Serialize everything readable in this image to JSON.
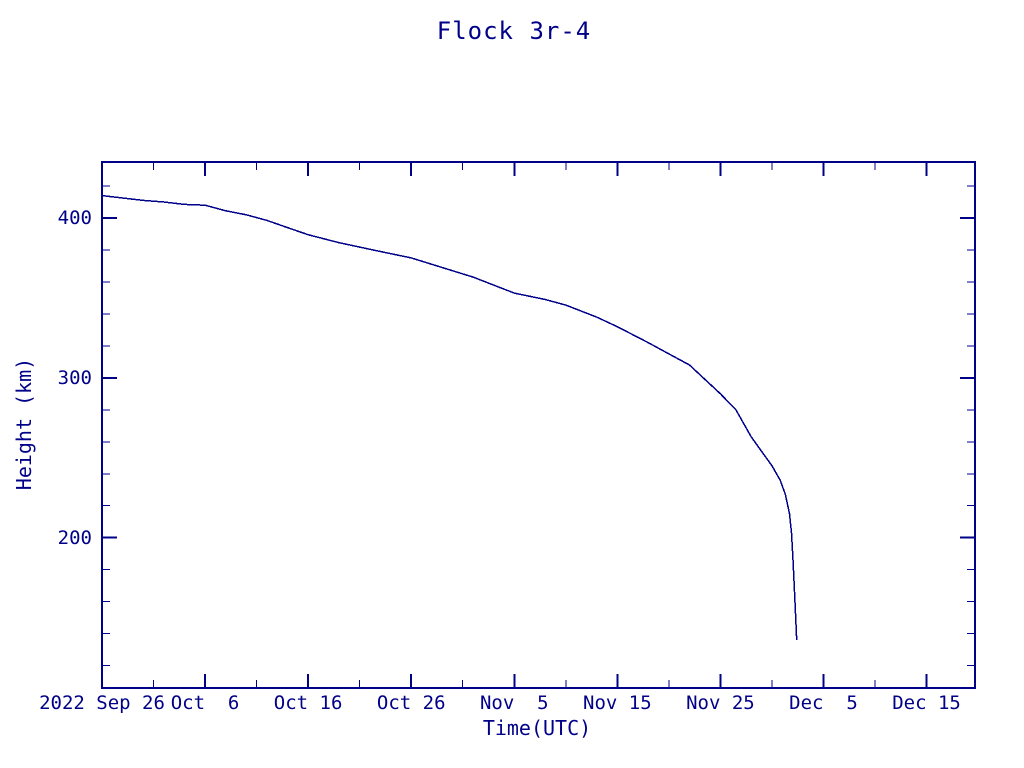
{
  "title": "Flock 3r-4",
  "colors": {
    "ink": "#000088",
    "background": "#ffffff",
    "line": "#000088"
  },
  "chart_data": {
    "type": "line",
    "title": "Flock 3r-4",
    "xlabel": "Time(UTC)",
    "ylabel": "Height (km)",
    "x_axis_year": "2022",
    "x_tick_labels": [
      "2022 Sep 26",
      "Oct  6",
      "Oct 16",
      "Oct 26",
      "Nov  5",
      "Nov 15",
      "Nov 25",
      "Dec  5",
      "Dec 15"
    ],
    "x_tick_days": [
      0,
      10,
      20,
      30,
      40,
      50,
      60,
      70,
      80
    ],
    "x_minor_tick_days": [
      5,
      15,
      25,
      35,
      45,
      55,
      65,
      75
    ],
    "xlim_days": [
      0,
      84.7
    ],
    "y_tick_labels": [
      "200",
      "300",
      "400"
    ],
    "y_ticks": [
      200,
      300,
      400
    ],
    "y_minor_ticks": [
      120,
      140,
      160,
      180,
      220,
      240,
      260,
      280,
      320,
      340,
      360,
      380,
      420
    ],
    "ylim": [
      106,
      435
    ],
    "grid": false,
    "legend": "none",
    "series": [
      {
        "name": "Flock 3r-4 orbital height",
        "points_day_km": [
          [
            0,
            414
          ],
          [
            2,
            412.5
          ],
          [
            4,
            411
          ],
          [
            6,
            410
          ],
          [
            8,
            408.5
          ],
          [
            10,
            408
          ],
          [
            12,
            404.5
          ],
          [
            14,
            402
          ],
          [
            16,
            398.5
          ],
          [
            18,
            394
          ],
          [
            20,
            389.5
          ],
          [
            23,
            384.5
          ],
          [
            27,
            379
          ],
          [
            30,
            375
          ],
          [
            33,
            369
          ],
          [
            36,
            363
          ],
          [
            40,
            353
          ],
          [
            43,
            349
          ],
          [
            45,
            345.5
          ],
          [
            48,
            338
          ],
          [
            50,
            332
          ],
          [
            53,
            322
          ],
          [
            55,
            315
          ],
          [
            57,
            308
          ],
          [
            58,
            302
          ],
          [
            60,
            290
          ],
          [
            61.5,
            280
          ],
          [
            63,
            263
          ],
          [
            64,
            254
          ],
          [
            65,
            245
          ],
          [
            65.8,
            236
          ],
          [
            66.3,
            227
          ],
          [
            66.7,
            215
          ],
          [
            66.9,
            203
          ],
          [
            67.05,
            185
          ],
          [
            67.2,
            165
          ],
          [
            67.3,
            150
          ],
          [
            67.4,
            136
          ]
        ]
      }
    ]
  }
}
